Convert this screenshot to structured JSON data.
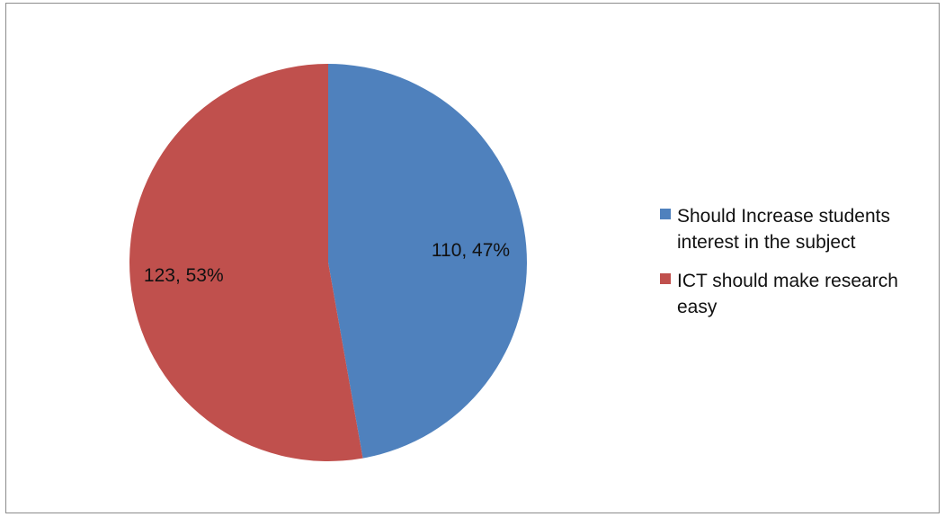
{
  "chart_data": {
    "type": "pie",
    "title": "",
    "slices": [
      {
        "label": "Should Increase students interest in the subject",
        "value": 110,
        "percent": "47%",
        "data_label": "110, 47%",
        "color": "#4f81bd"
      },
      {
        "label": "ICT should make research easy",
        "value": 123,
        "percent": "53%",
        "data_label": "123, 53%",
        "color": "#c0504d"
      }
    ],
    "legend_position": "right",
    "start_angle_deg": 0,
    "direction": "clockwise"
  }
}
